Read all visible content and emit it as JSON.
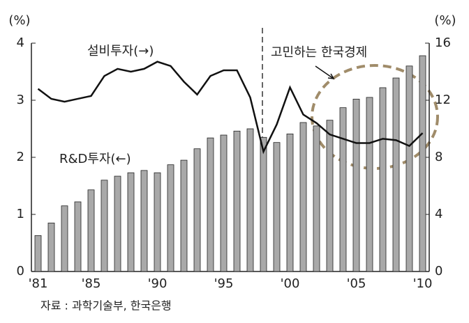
{
  "chart_data": {
    "type": "bar_line",
    "left_unit": "(%)",
    "right_unit": "(%)",
    "source": "자료 : 과학기술부, 한국은행",
    "annotations": [
      "설비투자(→)",
      "R&D투자(←)",
      "고민하는 한국경제"
    ],
    "categories": [
      "'81",
      null,
      null,
      null,
      "'85",
      null,
      null,
      null,
      null,
      "'90",
      null,
      null,
      null,
      null,
      "'95",
      null,
      null,
      null,
      null,
      "'00",
      null,
      null,
      null,
      null,
      "'05",
      null,
      null,
      null,
      null,
      "'10"
    ],
    "series": [
      {
        "name": "R&D투자(←)",
        "color": "#a9a9a9",
        "kind": "bar",
        "axis": "y",
        "values": [
          0.63,
          0.85,
          1.15,
          1.22,
          1.43,
          1.6,
          1.67,
          1.73,
          1.77,
          1.73,
          1.87,
          1.95,
          2.15,
          2.34,
          2.39,
          2.46,
          2.5,
          2.35,
          2.26,
          2.41,
          2.61,
          2.55,
          2.65,
          2.87,
          3.02,
          3.05,
          3.22,
          3.39,
          3.6,
          3.78
        ]
      },
      {
        "name": "설비투자(→)",
        "color": "#111111",
        "kind": "line",
        "axis": "y2",
        "values": [
          12.8,
          12.1,
          11.9,
          12.1,
          12.3,
          13.7,
          14.2,
          14.0,
          14.2,
          14.7,
          14.4,
          13.3,
          12.4,
          13.7,
          14.1,
          14.1,
          12.2,
          8.4,
          10.3,
          12.9,
          11.0,
          10.4,
          9.6,
          9.3,
          9.0,
          9.0,
          9.3,
          9.2,
          8.8,
          9.7
        ]
      }
    ],
    "ylim": [
      0,
      4
    ],
    "yticks": [
      0,
      1,
      2,
      3,
      4
    ],
    "y2lim": [
      0,
      16
    ],
    "y2ticks": [
      0,
      4,
      8,
      12,
      16
    ]
  }
}
